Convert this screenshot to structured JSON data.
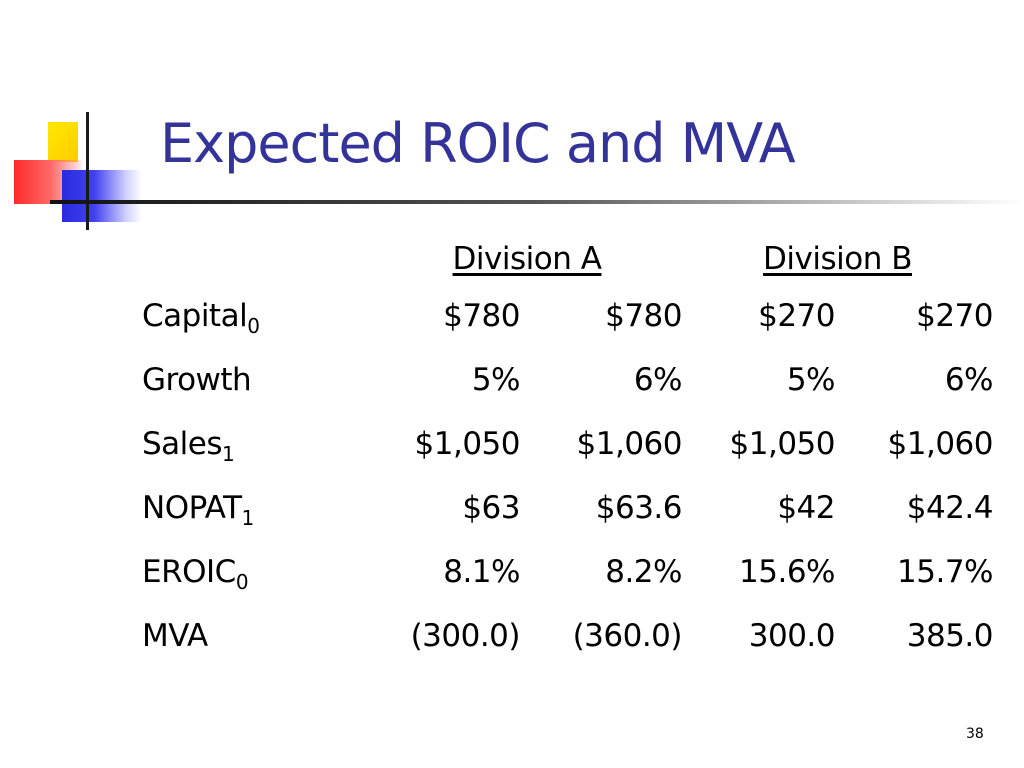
{
  "title": "Expected ROIC and MVA",
  "table": {
    "headers": [
      "Division A",
      "Division B"
    ],
    "rows": [
      {
        "label": "Capital",
        "sub": "0",
        "values": [
          "$780",
          "$780",
          "$270",
          "$270"
        ]
      },
      {
        "label": "Growth",
        "sub": "",
        "values": [
          "5%",
          "6%",
          "5%",
          "6%"
        ]
      },
      {
        "label": "Sales",
        "sub": "1",
        "values": [
          "$1,050",
          "$1,060",
          "$1,050",
          "$1,060"
        ]
      },
      {
        "label": "NOPAT",
        "sub": "1",
        "values": [
          "$63",
          "$63.6",
          "$42",
          "$42.4"
        ]
      },
      {
        "label": "EROIC",
        "sub": "0",
        "values": [
          "8.1%",
          "8.2%",
          "15.6%",
          "15.7%"
        ]
      },
      {
        "label": "MVA",
        "sub": "",
        "values": [
          "(300.0)",
          "(360.0)",
          "300.0",
          "385.0"
        ]
      }
    ]
  },
  "page_number": "38",
  "colors": {
    "title": "#33339a",
    "logo_yellow": "#ffcc00",
    "logo_red": "#ff2a2a",
    "logo_blue": "#2a2ae0"
  }
}
